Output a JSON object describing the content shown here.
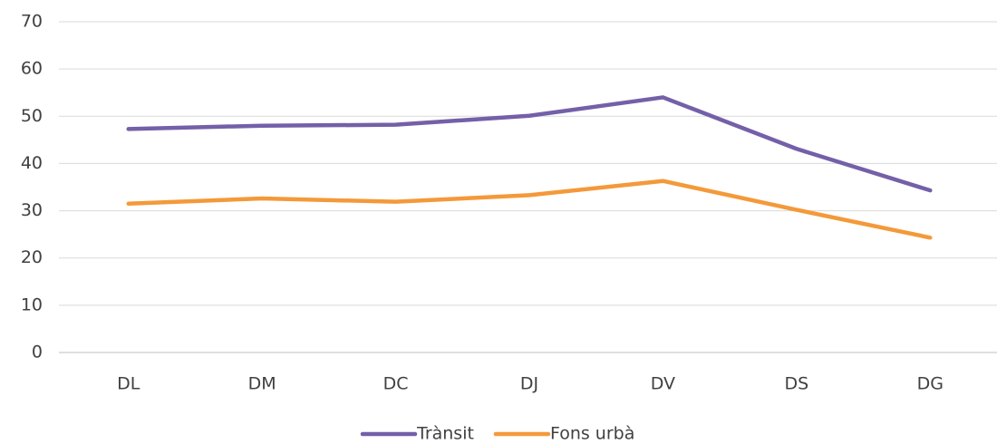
{
  "chart_data": {
    "type": "line",
    "categories": [
      "DL",
      "DM",
      "DC",
      "DJ",
      "DV",
      "DS",
      "DG"
    ],
    "series": [
      {
        "name": "Trànsit",
        "color": "#7460a8",
        "values": [
          47.3,
          48.0,
          48.2,
          50.1,
          54.0,
          43.1,
          34.3
        ]
      },
      {
        "name": "Fons urbà",
        "color": "#f4993a",
        "values": [
          31.5,
          32.6,
          31.9,
          33.3,
          36.3,
          30.2,
          24.3
        ]
      }
    ],
    "ylim": [
      0,
      70
    ],
    "yticks": [
      0,
      10,
      20,
      30,
      40,
      50,
      60,
      70
    ],
    "grid": true,
    "legend": "bottom"
  }
}
